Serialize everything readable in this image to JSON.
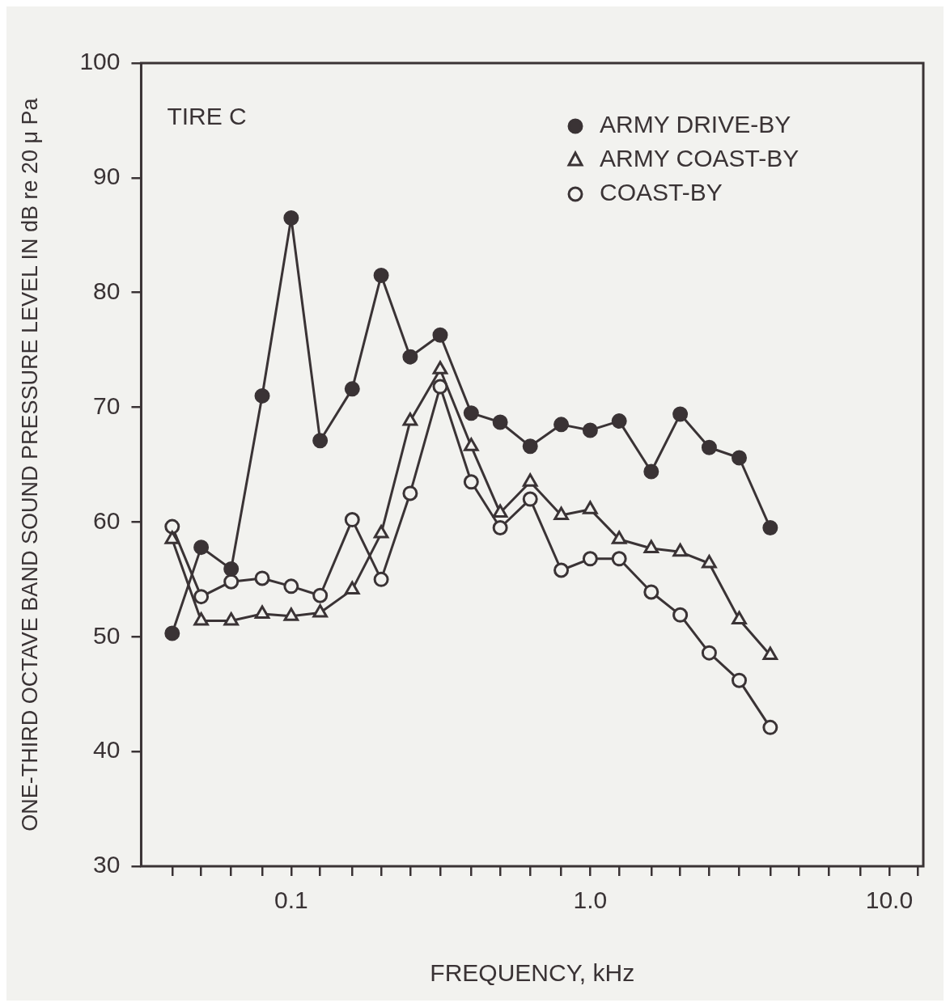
{
  "chart_data": {
    "type": "line",
    "xlabel": "FREQUENCY, kHz",
    "ylabel": "ONE-THIRD OCTAVE BAND SOUND PRESSURE LEVEL IN dB re 20 μ Pa",
    "annotations": [
      "TIRE C"
    ],
    "x": [
      0.04,
      0.05,
      0.063,
      0.08,
      0.1,
      0.125,
      0.16,
      0.2,
      0.25,
      0.315,
      0.4,
      0.5,
      0.63,
      0.8,
      1.0,
      1.25,
      1.6,
      2.0,
      2.5,
      3.15,
      4.0
    ],
    "series": [
      {
        "name": "ARMY DRIVE-BY",
        "color": "#3a3335",
        "values": [
          50.3,
          57.8,
          55.9,
          71.0,
          86.5,
          67.1,
          71.6,
          81.5,
          74.4,
          76.3,
          69.5,
          68.7,
          66.6,
          68.5,
          68.0,
          68.8,
          64.4,
          69.4,
          66.5,
          65.6,
          59.5
        ]
      },
      {
        "name": "ARMY COAST-BY",
        "color": "#3a3335",
        "marker": "triangle",
        "values": [
          58.5,
          51.4,
          51.4,
          52.0,
          51.8,
          52.1,
          54.1,
          59.0,
          68.8,
          73.3,
          66.6,
          60.8,
          63.5,
          60.6,
          61.1,
          58.5,
          57.7,
          57.4,
          56.4,
          51.5,
          48.4
        ]
      },
      {
        "name": "COAST-BY",
        "color": "#3a3335",
        "marker": "circle",
        "values": [
          59.6,
          53.5,
          54.8,
          55.1,
          54.4,
          53.6,
          60.2,
          55.0,
          62.5,
          71.8,
          63.5,
          59.5,
          62.0,
          55.8,
          56.8,
          56.8,
          53.9,
          51.9,
          48.6,
          46.2,
          42.1
        ]
      }
    ],
    "log": "x",
    "xlim": [
      0.0315,
      13
    ],
    "xticks": [
      {
        "value": 0.04,
        "label": null
      },
      {
        "value": 0.05,
        "label": null
      },
      {
        "value": 0.063,
        "label": null
      },
      {
        "value": 0.08,
        "label": null
      },
      {
        "value": 0.1,
        "label": "0.1"
      },
      {
        "value": 0.125,
        "label": null
      },
      {
        "value": 0.16,
        "label": null
      },
      {
        "value": 0.2,
        "label": null
      },
      {
        "value": 0.25,
        "label": null
      },
      {
        "value": 0.315,
        "label": null
      },
      {
        "value": 0.4,
        "label": null
      },
      {
        "value": 0.5,
        "label": null
      },
      {
        "value": 0.63,
        "label": null
      },
      {
        "value": 0.8,
        "label": null
      },
      {
        "value": 1,
        "label": "1.0"
      },
      {
        "value": 1.25,
        "label": null
      },
      {
        "value": 1.6,
        "label": null
      },
      {
        "value": 2,
        "label": null
      },
      {
        "value": 2.5,
        "label": null
      },
      {
        "value": 3.15,
        "label": null
      },
      {
        "value": 4,
        "label": null
      },
      {
        "value": 5,
        "label": null
      },
      {
        "value": 6.3,
        "label": null
      },
      {
        "value": 8,
        "label": null
      },
      {
        "value": 10,
        "label": "10.0"
      },
      {
        "value": 12.5,
        "label": null
      }
    ],
    "ylim": [
      30,
      100
    ],
    "yticks": [
      30,
      40,
      50,
      60,
      70,
      80,
      90,
      100
    ],
    "grid": false,
    "legend": "top right",
    "marker": "circle"
  }
}
